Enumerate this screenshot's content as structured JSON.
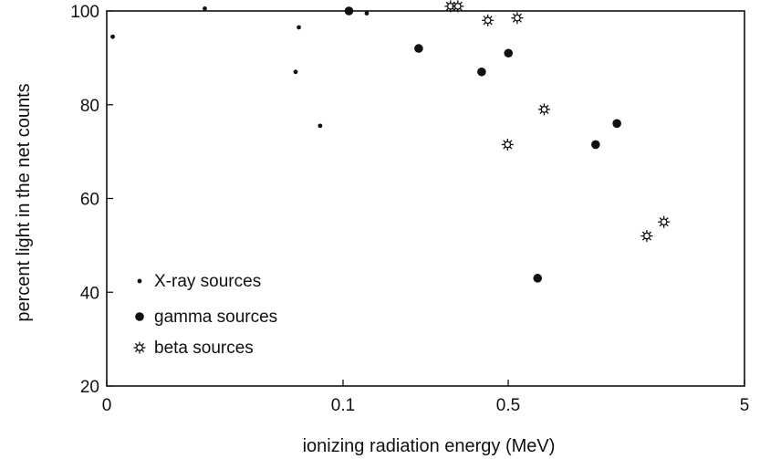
{
  "chart_data": {
    "type": "scatter",
    "title": "",
    "xlabel": "ionizing radiation energy (MeV)",
    "ylabel": "percent light in the net counts",
    "xscale": "log",
    "xlim": [
      0.01,
      5
    ],
    "ylim": [
      20,
      100
    ],
    "x_ticks": [
      {
        "value": 0.01,
        "label": "0"
      },
      {
        "value": 0.1,
        "label": "0.1"
      },
      {
        "value": 0.5,
        "label": "0.5"
      },
      {
        "value": 5,
        "label": "5"
      }
    ],
    "y_ticks": [
      {
        "value": 20,
        "label": "20"
      },
      {
        "value": 40,
        "label": "40"
      },
      {
        "value": 60,
        "label": "60"
      },
      {
        "value": 80,
        "label": "80"
      },
      {
        "value": 100,
        "label": "100"
      }
    ],
    "grid": false,
    "legend_position": "bottom-left",
    "series": [
      {
        "name": "X-ray sources",
        "marker": "small-dot",
        "color": "#111111",
        "points": [
          {
            "x": 0.0106,
            "y": 94.5
          },
          {
            "x": 0.026,
            "y": 100.5
          },
          {
            "x": 0.063,
            "y": 87
          },
          {
            "x": 0.065,
            "y": 96.5
          },
          {
            "x": 0.08,
            "y": 75.5
          },
          {
            "x": 0.126,
            "y": 99.5
          }
        ]
      },
      {
        "name": "gamma sources",
        "marker": "large-dot",
        "color": "#111111",
        "points": [
          {
            "x": 0.106,
            "y": 100
          },
          {
            "x": 0.209,
            "y": 92
          },
          {
            "x": 0.386,
            "y": 87
          },
          {
            "x": 0.501,
            "y": 91
          },
          {
            "x": 0.666,
            "y": 43
          },
          {
            "x": 1.172,
            "y": 71.5
          },
          {
            "x": 1.442,
            "y": 76
          }
        ]
      },
      {
        "name": "beta sources",
        "marker": "open-star",
        "color": "#111111",
        "points": [
          {
            "x": 0.285,
            "y": 101
          },
          {
            "x": 0.306,
            "y": 101
          },
          {
            "x": 0.41,
            "y": 98
          },
          {
            "x": 0.497,
            "y": 71.5
          },
          {
            "x": 0.546,
            "y": 98.5
          },
          {
            "x": 0.71,
            "y": 79
          },
          {
            "x": 1.93,
            "y": 52
          },
          {
            "x": 2.28,
            "y": 55
          }
        ]
      }
    ]
  }
}
